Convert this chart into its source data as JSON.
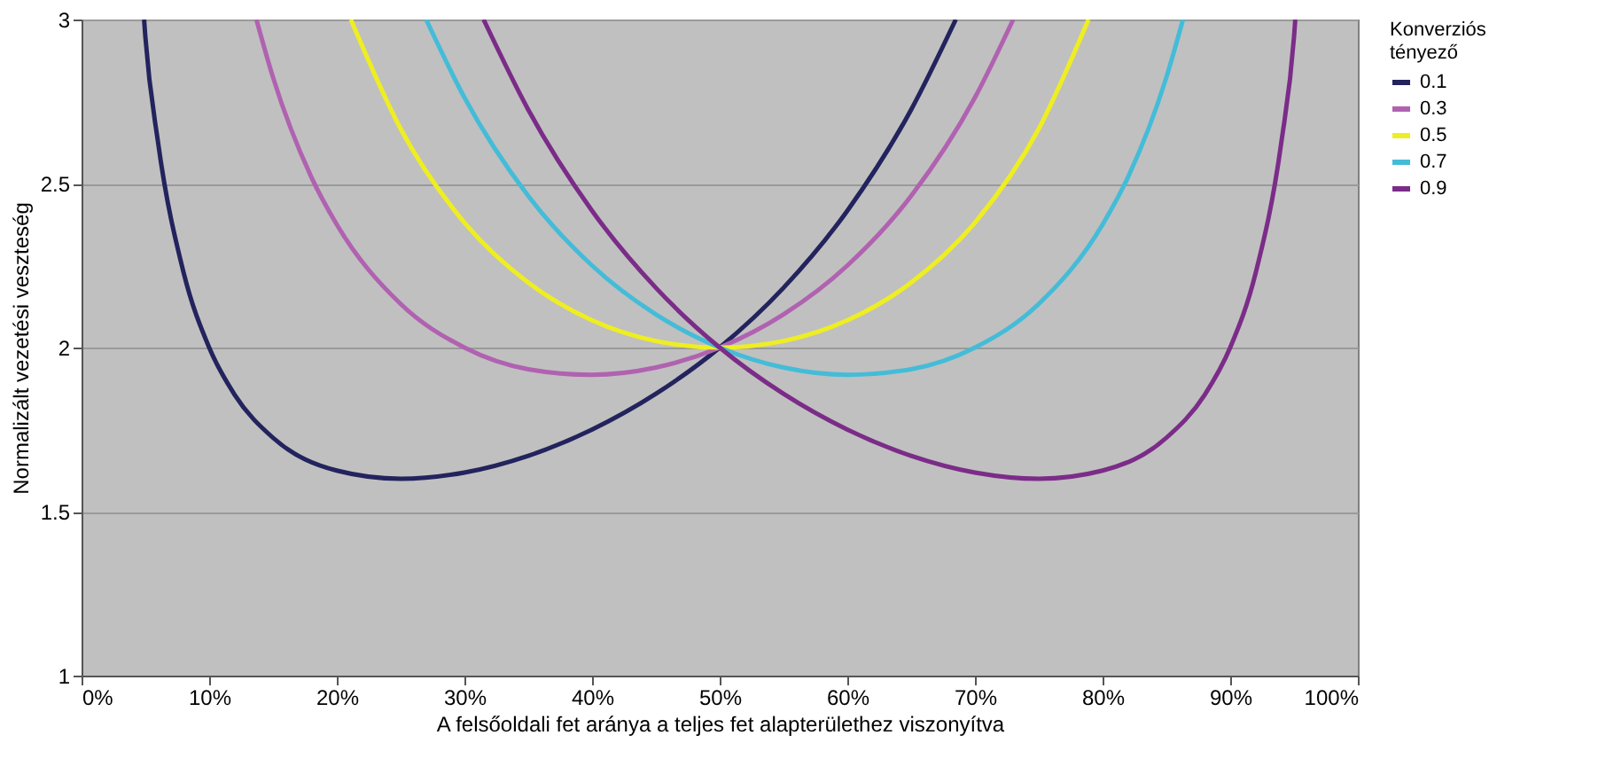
{
  "chart_data": {
    "type": "line",
    "xlabel": "A felsőoldali fet aránya a teljes fet alapterülethez viszonyítva",
    "ylabel": "Normalizált vezetési veszteség",
    "legend_title": "Konverziós tényező",
    "legend": "right",
    "grid": "y",
    "marker": "none",
    "line_style": "solid",
    "xlim": [
      0,
      100
    ],
    "ylim": [
      1,
      3
    ],
    "xticks": [
      {
        "value": 0,
        "label": "0%"
      },
      {
        "value": 10,
        "label": "10%"
      },
      {
        "value": 20,
        "label": "20%"
      },
      {
        "value": 30,
        "label": "30%"
      },
      {
        "value": 40,
        "label": "40%"
      },
      {
        "value": 50,
        "label": "50%"
      },
      {
        "value": 60,
        "label": "60%"
      },
      {
        "value": 70,
        "label": "70%"
      },
      {
        "value": 80,
        "label": "80%"
      },
      {
        "value": 90,
        "label": "90%"
      },
      {
        "value": 100,
        "label": "100%"
      }
    ],
    "yticks": [
      1,
      1.5,
      2,
      2.5,
      3
    ],
    "series": [
      {
        "name": "0.1",
        "color": "#23235e",
        "x": [
          4.9,
          5,
          6,
          8,
          10,
          12,
          15,
          20,
          25,
          30,
          35,
          40,
          45,
          50,
          55,
          60,
          65,
          68.5
        ],
        "values": [
          3.0,
          2.947,
          2.624,
          2.228,
          2.0,
          1.856,
          1.725,
          1.625,
          1.6,
          1.619,
          1.67,
          1.75,
          1.859,
          2.0,
          2.182,
          2.417,
          2.725,
          3.0
        ]
      },
      {
        "name": "0.3",
        "color": "#b062b0",
        "x": [
          13.7,
          15,
          18,
          20,
          25,
          30,
          35,
          40,
          45,
          50,
          55,
          60,
          65,
          70,
          73
        ],
        "values": [
          3.0,
          2.824,
          2.52,
          2.375,
          2.133,
          2.0,
          1.934,
          1.917,
          1.939,
          2.0,
          2.101,
          2.25,
          2.462,
          2.762,
          3.0
        ]
      },
      {
        "name": "0.5",
        "color": "#eeee22",
        "x": [
          21.1,
          25,
          30,
          35,
          40,
          45,
          50,
          55,
          60,
          65,
          70,
          75,
          78.9
        ],
        "values": [
          3.0,
          2.667,
          2.381,
          2.198,
          2.083,
          2.02,
          2.0,
          2.02,
          2.083,
          2.198,
          2.381,
          2.667,
          3.0
        ]
      },
      {
        "name": "0.7",
        "color": "#44bcd8",
        "x": [
          27,
          30,
          35,
          40,
          45,
          50,
          55,
          60,
          65,
          70,
          75,
          80,
          82,
          85,
          86.3
        ],
        "values": [
          3.0,
          2.762,
          2.462,
          2.25,
          2.101,
          2.0,
          1.939,
          1.917,
          1.934,
          2.0,
          2.133,
          2.375,
          2.52,
          2.824,
          3.0
        ]
      },
      {
        "name": "0.9",
        "color": "#7b2c88",
        "x": [
          31.5,
          35,
          40,
          45,
          50,
          55,
          60,
          65,
          70,
          75,
          80,
          85,
          88,
          90,
          92,
          94,
          95,
          95.1
        ],
        "values": [
          3.0,
          2.725,
          2.417,
          2.182,
          2.0,
          1.859,
          1.75,
          1.67,
          1.619,
          1.6,
          1.625,
          1.725,
          1.856,
          2.0,
          2.228,
          2.624,
          2.947,
          3.0
        ]
      }
    ]
  }
}
